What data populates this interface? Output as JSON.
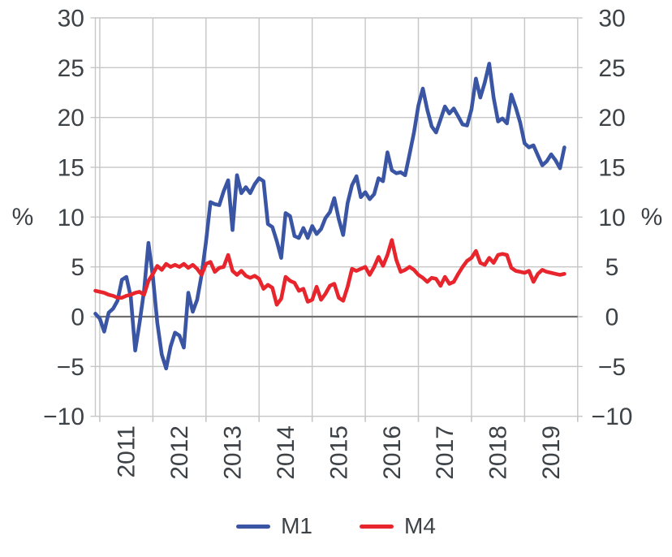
{
  "page": {
    "background": "#ffffff"
  },
  "chart_data": {
    "type": "line",
    "title": "",
    "unit_label_left": "%",
    "unit_label_right": "%",
    "grid": true,
    "legend_position": "bottom",
    "ylim": [
      -10,
      30
    ],
    "yticks": [
      30,
      25,
      20,
      15,
      10,
      5,
      0,
      -5,
      -10
    ],
    "zero_line_value": 0,
    "x_start": "2010-12",
    "x_end_axis": "2020-01",
    "x_months_total": 109,
    "x_year_tick_labels": [
      "2011",
      "2012",
      "2013",
      "2014",
      "2015",
      "2016",
      "2017",
      "2018",
      "2019"
    ],
    "frequency": "monthly",
    "colors": {
      "grid": "#c6c6c6",
      "zero_line": "#6f6f6f",
      "axis_text": "#3d4247",
      "background": "#ffffff"
    },
    "series": [
      {
        "name": "M1",
        "color": "#3a55a4",
        "values": [
          0.3,
          -0.2,
          -1.5,
          0.4,
          0.8,
          1.6,
          3.7,
          4.0,
          2.0,
          -3.4,
          -0.6,
          2.6,
          7.4,
          4.0,
          -0.6,
          -3.8,
          -5.2,
          -3.0,
          -1.6,
          -1.9,
          -3.1,
          2.4,
          0.5,
          1.7,
          4.2,
          7.5,
          11.5,
          11.3,
          11.2,
          12.6,
          13.7,
          8.7,
          14.2,
          12.4,
          13.0,
          12.4,
          13.3,
          13.9,
          13.6,
          9.3,
          9.0,
          7.6,
          5.9,
          10.4,
          10.1,
          8.1,
          7.9,
          8.9,
          7.9,
          9.1,
          8.3,
          8.8,
          9.9,
          10.5,
          11.9,
          9.8,
          8.2,
          11.4,
          13.2,
          14.1,
          12.0,
          12.5,
          11.8,
          12.3,
          13.9,
          13.6,
          16.5,
          14.7,
          14.4,
          14.5,
          14.2,
          16.3,
          18.5,
          21.2,
          22.9,
          20.8,
          19.1,
          18.5,
          19.8,
          21.1,
          20.4,
          20.9,
          20.1,
          19.3,
          19.2,
          20.8,
          23.9,
          22.0,
          23.5,
          25.4,
          22.0,
          19.6,
          19.9,
          19.4,
          22.3,
          21.0,
          19.5,
          17.4,
          17.0,
          17.2,
          16.2,
          15.2,
          15.6,
          16.3,
          15.7,
          14.9,
          17.0
        ]
      },
      {
        "name": "M4",
        "color": "#e8242c",
        "values": [
          2.6,
          2.5,
          2.4,
          2.2,
          2.1,
          1.9,
          1.9,
          2.1,
          2.2,
          2.4,
          2.5,
          2.2,
          3.6,
          4.3,
          5.1,
          4.7,
          5.3,
          5.0,
          5.2,
          5.0,
          5.3,
          4.9,
          5.2,
          4.8,
          4.2,
          5.3,
          5.5,
          4.5,
          4.9,
          5.0,
          6.2,
          4.6,
          4.2,
          4.6,
          4.1,
          3.9,
          4.1,
          3.8,
          2.8,
          3.2,
          2.9,
          1.2,
          1.8,
          4.0,
          3.6,
          3.4,
          2.6,
          2.8,
          1.5,
          1.7,
          3.0,
          1.7,
          2.3,
          3.1,
          3.3,
          1.9,
          1.6,
          3.0,
          4.8,
          4.6,
          4.8,
          5.0,
          4.2,
          5.0,
          6.0,
          5.1,
          6.2,
          7.7,
          5.7,
          4.5,
          4.7,
          5.0,
          4.7,
          4.2,
          3.9,
          3.5,
          3.9,
          3.8,
          3.1,
          4.0,
          3.3,
          3.5,
          4.3,
          5.0,
          5.6,
          5.9,
          6.6,
          5.4,
          5.2,
          5.9,
          5.4,
          6.2,
          6.3,
          6.2,
          4.9,
          4.6,
          4.5,
          4.4,
          4.6,
          3.5,
          4.3,
          4.7,
          4.5,
          4.4,
          4.3,
          4.2,
          4.3
        ]
      }
    ]
  }
}
